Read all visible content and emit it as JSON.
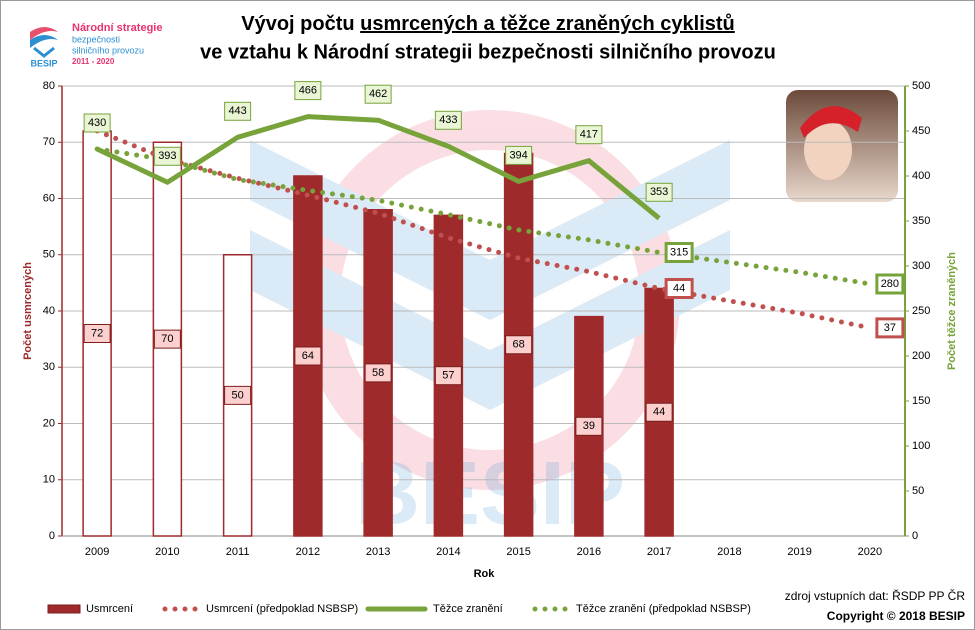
{
  "chart_data": {
    "type": "combo",
    "title": {
      "prefix": "Vývoj počtu ",
      "underlined": "usmrcených a těžce zraněných cyklistů",
      "line2": "ve vztahu k Národní strategii bezpečnosti silničního provozu"
    },
    "logo": {
      "line1": "Národní strategie",
      "line2": "bezpečnosti",
      "line3": "silničního provozu",
      "years": "2011 - 2020",
      "brand": "BESIP"
    },
    "watermark": "BESIP",
    "x_label": "Rok",
    "y_label": "Počet usmrcených",
    "y2_label": "Počet těžce zraněných",
    "source": "zdroj vstupních dat: ŘSDP PP ČR",
    "copyright": "Copyright © 2018  BESIP",
    "categories": [
      "2009",
      "2010",
      "2011",
      "2012",
      "2013",
      "2014",
      "2015",
      "2016",
      "2017",
      "2018",
      "2019",
      "2020"
    ],
    "ylim": [
      0,
      80
    ],
    "yticks": [
      0,
      10,
      20,
      30,
      40,
      50,
      60,
      70,
      80
    ],
    "y2lim": [
      0,
      500
    ],
    "y2ticks": [
      0,
      50,
      100,
      150,
      200,
      250,
      300,
      350,
      400,
      450,
      500
    ],
    "grid": true,
    "series": [
      {
        "name": "Usmrcení",
        "kind": "bar",
        "color": "#9e2a2b",
        "colors": [
          "#ffffff",
          "#ffffff",
          "#ffffff",
          "#9e2a2b",
          "#9e2a2b",
          "#9e2a2b",
          "#9e2a2b",
          "#9e2a2b",
          "#9e2a2b",
          null,
          null,
          null
        ],
        "values": [
          72,
          70,
          50,
          64,
          58,
          57,
          68,
          39,
          44,
          null,
          null,
          null
        ]
      },
      {
        "name": "Usmrcení (předpoklad NSBSP)",
        "kind": "dotted",
        "color": "#c0504d",
        "values": [
          72,
          67,
          63.6,
          60.6,
          57.4,
          53,
          49.4,
          47,
          44,
          41.8,
          39.6,
          37
        ],
        "value_labels": [
          null,
          null,
          null,
          null,
          null,
          null,
          null,
          null,
          "44",
          null,
          null,
          "37"
        ]
      },
      {
        "name": "Těžce zranění",
        "kind": "line",
        "axis": "y2",
        "color": "#77a33a",
        "values": [
          430,
          393,
          443,
          466,
          462,
          433,
          394,
          417,
          353,
          null,
          null,
          null
        ]
      },
      {
        "name": "Těžce zranění (předpoklad NSBSP)",
        "kind": "dotted",
        "axis": "y2",
        "color": "#77a33a",
        "values": [
          430,
          418,
          396,
          384,
          373,
          357,
          340,
          329,
          315,
          304,
          293,
          280
        ],
        "value_labels": [
          null,
          null,
          null,
          null,
          null,
          null,
          null,
          null,
          "315",
          null,
          null,
          "280"
        ]
      }
    ]
  }
}
